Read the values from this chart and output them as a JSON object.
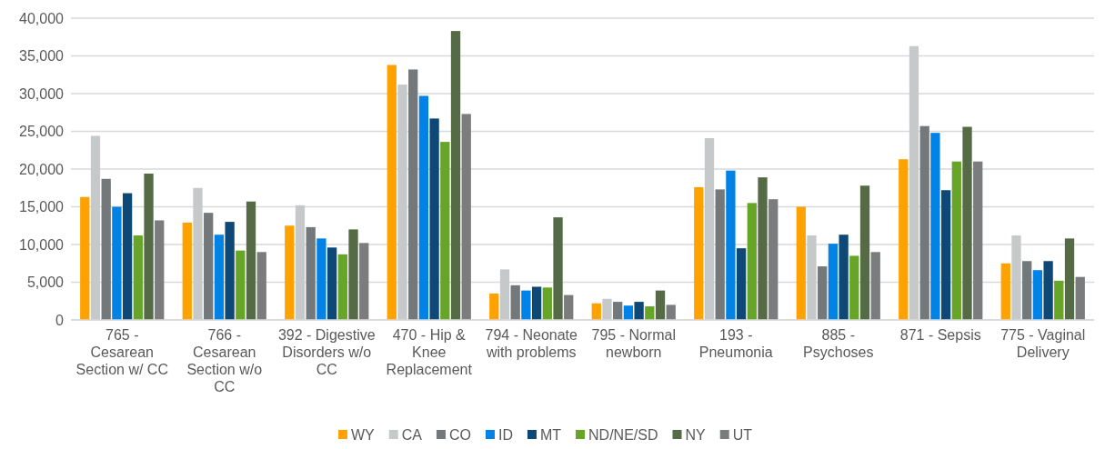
{
  "chart_data": {
    "type": "bar",
    "categories": [
      "765 - Cesarean Section w/ CC",
      "766 - Cesarean Section w/o CC",
      "392 - Digestive Disorders w/o CC",
      "470 - Hip & Knee Replacement",
      "794 - Neonate with problems",
      "795 - Normal newborn",
      "193 - Pneumonia",
      "885 - Psychoses",
      "871 - Sepsis",
      "775 - Vaginal Delivery"
    ],
    "series": [
      {
        "name": "WY",
        "color": "#ffa200",
        "values": [
          16300,
          12900,
          12500,
          33800,
          3500,
          2200,
          17600,
          15000,
          21300,
          7500
        ]
      },
      {
        "name": "CA",
        "color": "#c6c9ca",
        "values": [
          24400,
          17500,
          15200,
          31200,
          6700,
          2800,
          24100,
          11200,
          36300,
          11200
        ]
      },
      {
        "name": "CO",
        "color": "#73787a",
        "values": [
          18700,
          14200,
          12300,
          33200,
          4600,
          2400,
          17300,
          7100,
          25700,
          7800
        ]
      },
      {
        "name": "ID",
        "color": "#0082e6",
        "values": [
          15000,
          11300,
          10800,
          29700,
          3900,
          1900,
          19800,
          10100,
          24800,
          6600
        ]
      },
      {
        "name": "MT",
        "color": "#0d4876",
        "values": [
          16800,
          13000,
          9600,
          26700,
          4400,
          2400,
          9500,
          11300,
          17200,
          7800
        ]
      },
      {
        "name": "ND/NE/SD",
        "color": "#66a528",
        "values": [
          11200,
          9200,
          8700,
          23600,
          4300,
          1800,
          15500,
          8500,
          21000,
          5200
        ]
      },
      {
        "name": "NY",
        "color": "#546b46",
        "values": [
          19400,
          15700,
          12000,
          38300,
          13600,
          3900,
          18900,
          17800,
          25600,
          10800
        ]
      },
      {
        "name": "UT",
        "color": "#7a7c7e",
        "values": [
          13200,
          9000,
          10200,
          27300,
          3300,
          2000,
          16000,
          9000,
          21000,
          5700
        ]
      }
    ],
    "ylim": [
      0,
      40000
    ],
    "yticks": [
      {
        "value": 0,
        "label": "0"
      },
      {
        "value": 5000,
        "label": "5,000"
      },
      {
        "value": 10000,
        "label": "10,000"
      },
      {
        "value": 15000,
        "label": "15,000"
      },
      {
        "value": 20000,
        "label": "20,000"
      },
      {
        "value": 25000,
        "label": "25,000"
      },
      {
        "value": 30000,
        "label": "30,000"
      },
      {
        "value": 35000,
        "label": "35,000"
      },
      {
        "value": 40000,
        "label": "40,000"
      }
    ],
    "grid": "y",
    "legend": "bottom"
  }
}
